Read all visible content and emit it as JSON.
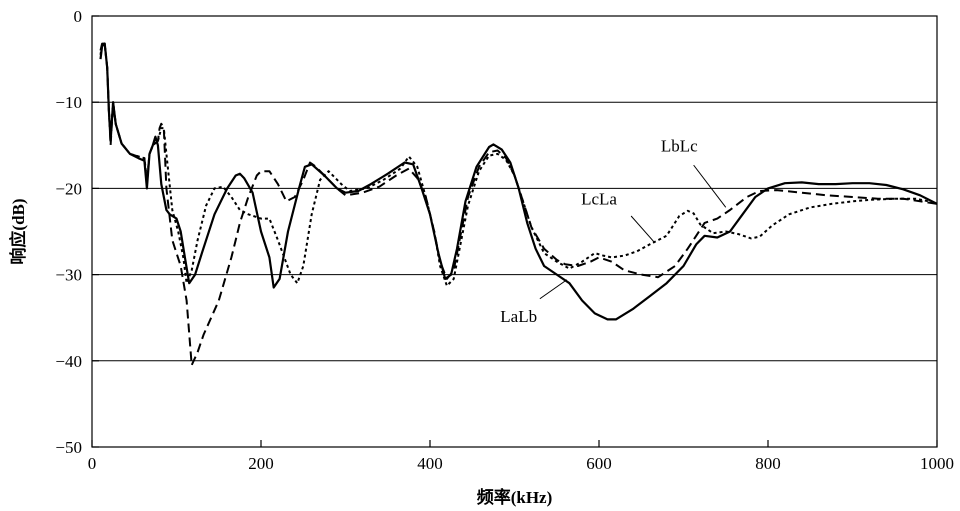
{
  "chart_data": {
    "type": "line",
    "xlabel": "频率(kHz)",
    "ylabel": "响应(dB)",
    "xlim": [
      0,
      1000
    ],
    "ylim": [
      -50,
      0
    ],
    "x_ticks": [
      0,
      200,
      400,
      600,
      800,
      1000
    ],
    "x_tick_labels": [
      "0",
      "200",
      "400",
      "600",
      "800",
      "1000"
    ],
    "y_ticks": [
      0,
      -10,
      -20,
      -30,
      -40,
      -50
    ],
    "y_tick_labels": [
      "0",
      "−10",
      "−20",
      "−30",
      "−40",
      "−50"
    ],
    "grid": "horizontal",
    "series": [
      {
        "name": "LaLb",
        "style": "solid",
        "points": [
          [
            10,
            -5
          ],
          [
            12,
            -3.5
          ],
          [
            15,
            -3.2
          ],
          [
            18,
            -6
          ],
          [
            20,
            -11
          ],
          [
            22,
            -14.5
          ],
          [
            25,
            -10
          ],
          [
            28,
            -12.5
          ],
          [
            35,
            -14.8
          ],
          [
            45,
            -16
          ],
          [
            55,
            -16.5
          ],
          [
            62,
            -16.8
          ],
          [
            65,
            -20
          ],
          [
            68,
            -16
          ],
          [
            72,
            -15
          ],
          [
            75,
            -14
          ],
          [
            78,
            -15
          ],
          [
            82,
            -19.5
          ],
          [
            88,
            -22.5
          ],
          [
            92,
            -23
          ],
          [
            100,
            -23.5
          ],
          [
            105,
            -25
          ],
          [
            110,
            -28
          ],
          [
            115,
            -31
          ],
          [
            122,
            -30
          ],
          [
            130,
            -27.5
          ],
          [
            145,
            -23
          ],
          [
            160,
            -20
          ],
          [
            170,
            -18.5
          ],
          [
            175,
            -18.3
          ],
          [
            180,
            -18.8
          ],
          [
            190,
            -20.5
          ],
          [
            200,
            -25
          ],
          [
            210,
            -28
          ],
          [
            215,
            -31.5
          ],
          [
            222,
            -30.5
          ],
          [
            232,
            -25
          ],
          [
            245,
            -20
          ],
          [
            252,
            -17.5
          ],
          [
            260,
            -17.2
          ],
          [
            275,
            -18.5
          ],
          [
            290,
            -20
          ],
          [
            300,
            -20.5
          ],
          [
            315,
            -20.3
          ],
          [
            330,
            -19.5
          ],
          [
            350,
            -18.3
          ],
          [
            370,
            -17
          ],
          [
            380,
            -17.2
          ],
          [
            390,
            -20
          ],
          [
            400,
            -23
          ],
          [
            410,
            -27.5
          ],
          [
            418,
            -30.5
          ],
          [
            425,
            -30
          ],
          [
            432,
            -27
          ],
          [
            442,
            -21.5
          ],
          [
            455,
            -17.5
          ],
          [
            470,
            -15.2
          ],
          [
            475,
            -14.9
          ],
          [
            485,
            -15.5
          ],
          [
            495,
            -17
          ],
          [
            505,
            -20
          ],
          [
            515,
            -24
          ],
          [
            525,
            -27
          ],
          [
            535,
            -29
          ],
          [
            550,
            -30
          ],
          [
            565,
            -31
          ],
          [
            580,
            -33
          ],
          [
            595,
            -34.5
          ],
          [
            610,
            -35.2
          ],
          [
            620,
            -35.2
          ],
          [
            640,
            -34
          ],
          [
            660,
            -32.5
          ],
          [
            680,
            -31
          ],
          [
            700,
            -29
          ],
          [
            715,
            -26.5
          ],
          [
            725,
            -25.5
          ],
          [
            740,
            -25.7
          ],
          [
            755,
            -25
          ],
          [
            770,
            -23
          ],
          [
            785,
            -21
          ],
          [
            800,
            -20
          ],
          [
            820,
            -19.4
          ],
          [
            840,
            -19.3
          ],
          [
            860,
            -19.5
          ],
          [
            880,
            -19.5
          ],
          [
            900,
            -19.4
          ],
          [
            920,
            -19.4
          ],
          [
            940,
            -19.6
          ],
          [
            960,
            -20.1
          ],
          [
            980,
            -20.8
          ],
          [
            1000,
            -21.8
          ]
        ]
      },
      {
        "name": "LbLc",
        "style": "dashed",
        "points": [
          [
            10,
            -4
          ],
          [
            12,
            -3.2
          ],
          [
            15,
            -3.2
          ],
          [
            18,
            -6
          ],
          [
            20,
            -11
          ],
          [
            22,
            -15
          ],
          [
            25,
            -10
          ],
          [
            28,
            -12.5
          ],
          [
            35,
            -14.8
          ],
          [
            45,
            -16
          ],
          [
            55,
            -16.3
          ],
          [
            62,
            -16.5
          ],
          [
            65,
            -19.5
          ],
          [
            68,
            -16
          ],
          [
            72,
            -15
          ],
          [
            78,
            -14.5
          ],
          [
            80,
            -13
          ],
          [
            82,
            -12.5
          ],
          [
            85,
            -13
          ],
          [
            88,
            -20
          ],
          [
            95,
            -26
          ],
          [
            105,
            -29
          ],
          [
            112,
            -33
          ],
          [
            118,
            -40.5
          ],
          [
            125,
            -39
          ],
          [
            132,
            -37
          ],
          [
            150,
            -33
          ],
          [
            165,
            -28
          ],
          [
            170,
            -26
          ],
          [
            175,
            -24
          ],
          [
            185,
            -21
          ],
          [
            195,
            -18.5
          ],
          [
            200,
            -18
          ],
          [
            210,
            -18
          ],
          [
            220,
            -19.5
          ],
          [
            230,
            -21.5
          ],
          [
            240,
            -21
          ],
          [
            250,
            -19
          ],
          [
            258,
            -17
          ],
          [
            265,
            -17.5
          ],
          [
            275,
            -18.5
          ],
          [
            290,
            -20
          ],
          [
            300,
            -20.8
          ],
          [
            320,
            -20.5
          ],
          [
            340,
            -19.8
          ],
          [
            360,
            -18.5
          ],
          [
            375,
            -17.7
          ],
          [
            385,
            -18.8
          ],
          [
            395,
            -21
          ],
          [
            405,
            -25
          ],
          [
            412,
            -28.5
          ],
          [
            420,
            -30.5
          ],
          [
            428,
            -29.5
          ],
          [
            435,
            -26
          ],
          [
            445,
            -21
          ],
          [
            458,
            -17.5
          ],
          [
            470,
            -15.8
          ],
          [
            480,
            -15.6
          ],
          [
            490,
            -16.5
          ],
          [
            500,
            -18.5
          ],
          [
            510,
            -21.5
          ],
          [
            520,
            -24.5
          ],
          [
            535,
            -27
          ],
          [
            550,
            -28.3
          ],
          [
            560,
            -28.8
          ],
          [
            575,
            -29
          ],
          [
            590,
            -28.5
          ],
          [
            600,
            -28
          ],
          [
            615,
            -28.5
          ],
          [
            630,
            -29.5
          ],
          [
            650,
            -30
          ],
          [
            670,
            -30.3
          ],
          [
            690,
            -29
          ],
          [
            705,
            -27
          ],
          [
            715,
            -25.5
          ],
          [
            725,
            -24
          ],
          [
            740,
            -23.5
          ],
          [
            755,
            -22.5
          ],
          [
            775,
            -21
          ],
          [
            790,
            -20.3
          ],
          [
            810,
            -20.2
          ],
          [
            840,
            -20.5
          ],
          [
            870,
            -20.8
          ],
          [
            900,
            -21
          ],
          [
            930,
            -21.2
          ],
          [
            960,
            -21.2
          ],
          [
            980,
            -21.5
          ],
          [
            1000,
            -21.8
          ]
        ]
      },
      {
        "name": "LcLa",
        "style": "dotted",
        "points": [
          [
            10,
            -4.5
          ],
          [
            12,
            -3.3
          ],
          [
            15,
            -3.2
          ],
          [
            18,
            -6
          ],
          [
            20,
            -11
          ],
          [
            22,
            -14
          ],
          [
            25,
            -10
          ],
          [
            28,
            -12.5
          ],
          [
            35,
            -14.8
          ],
          [
            45,
            -16
          ],
          [
            55,
            -16.3
          ],
          [
            62,
            -16.5
          ],
          [
            65,
            -19
          ],
          [
            68,
            -16
          ],
          [
            72,
            -15
          ],
          [
            78,
            -14.5
          ],
          [
            82,
            -13
          ],
          [
            85,
            -13
          ],
          [
            88,
            -16
          ],
          [
            95,
            -22.5
          ],
          [
            102,
            -25
          ],
          [
            108,
            -28
          ],
          [
            112,
            -31
          ],
          [
            118,
            -29.5
          ],
          [
            125,
            -26
          ],
          [
            135,
            -22
          ],
          [
            145,
            -20
          ],
          [
            155,
            -19.8
          ],
          [
            165,
            -21
          ],
          [
            175,
            -22.5
          ],
          [
            185,
            -23
          ],
          [
            200,
            -23.5
          ],
          [
            210,
            -23.5
          ],
          [
            220,
            -26
          ],
          [
            235,
            -30
          ],
          [
            243,
            -31
          ],
          [
            250,
            -29
          ],
          [
            260,
            -23
          ],
          [
            270,
            -19
          ],
          [
            280,
            -18
          ],
          [
            295,
            -19.5
          ],
          [
            305,
            -20.3
          ],
          [
            325,
            -20
          ],
          [
            345,
            -19
          ],
          [
            365,
            -17.7
          ],
          [
            375,
            -16.3
          ],
          [
            385,
            -17.5
          ],
          [
            395,
            -21
          ],
          [
            405,
            -25
          ],
          [
            412,
            -29
          ],
          [
            420,
            -31.3
          ],
          [
            428,
            -30.5
          ],
          [
            435,
            -27
          ],
          [
            445,
            -22
          ],
          [
            458,
            -18
          ],
          [
            470,
            -16.2
          ],
          [
            480,
            -16
          ],
          [
            490,
            -16.7
          ],
          [
            500,
            -18.5
          ],
          [
            510,
            -21.5
          ],
          [
            520,
            -24.5
          ],
          [
            535,
            -27.5
          ],
          [
            550,
            -28.5
          ],
          [
            565,
            -29.3
          ],
          [
            580,
            -28.5
          ],
          [
            595,
            -27.5
          ],
          [
            605,
            -27.8
          ],
          [
            615,
            -28
          ],
          [
            630,
            -27.8
          ],
          [
            645,
            -27.3
          ],
          [
            660,
            -26.5
          ],
          [
            680,
            -25.5
          ],
          [
            695,
            -23.2
          ],
          [
            705,
            -22.6
          ],
          [
            712,
            -22.9
          ],
          [
            720,
            -24.2
          ],
          [
            735,
            -25.2
          ],
          [
            750,
            -25
          ],
          [
            765,
            -25.3
          ],
          [
            780,
            -25.8
          ],
          [
            790,
            -25.6
          ],
          [
            805,
            -24.3
          ],
          [
            825,
            -23
          ],
          [
            850,
            -22.2
          ],
          [
            875,
            -21.8
          ],
          [
            900,
            -21.5
          ],
          [
            925,
            -21.3
          ],
          [
            950,
            -21.2
          ],
          [
            975,
            -21.2
          ],
          [
            1000,
            -21.7
          ]
        ]
      }
    ],
    "annotations": [
      {
        "text": "LbLc",
        "series": "LbLc"
      },
      {
        "text": "LcLa",
        "series": "LcLa"
      },
      {
        "text": "LaLb",
        "series": "LaLb"
      }
    ]
  }
}
